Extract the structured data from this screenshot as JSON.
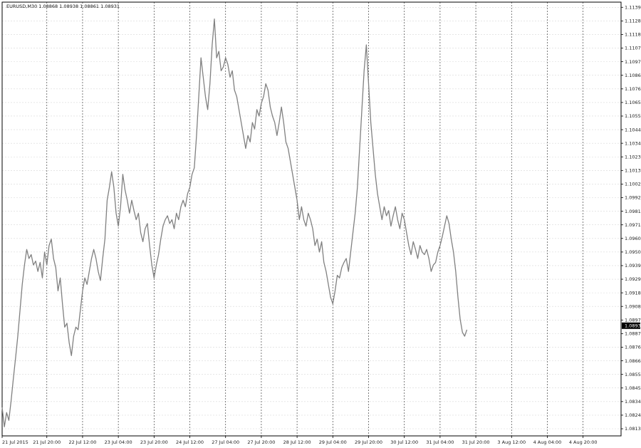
{
  "chart_data": {
    "type": "line",
    "title": "EURUSD,M30  1.08868 1.08938 1.08861 1.08931",
    "symbol": "EURUSD",
    "timeframe": "M30",
    "ohlc": {
      "open": "1.08868",
      "high": "1.08938",
      "low": "1.08861",
      "close": "1.08931"
    },
    "last_price_label": "1.08931",
    "last_price": 1.08931,
    "ylim": [
      1.0808,
      1.1143
    ],
    "y_ticks": [
      "1.11390",
      "1.11285",
      "1.11180",
      "1.11075",
      "1.10970",
      "1.10865",
      "1.10760",
      "1.10655",
      "1.10550",
      "1.10445",
      "1.10340",
      "1.10235",
      "1.10130",
      "1.10025",
      "1.09920",
      "1.09815",
      "1.09710",
      "1.09605",
      "1.09500",
      "1.09395",
      "1.09290",
      "1.09185",
      "1.09080",
      "1.08975",
      "1.08870",
      "1.08765",
      "1.08660",
      "1.08555",
      "1.08450",
      "1.08345",
      "1.08240",
      "1.08135"
    ],
    "x_ticks": [
      {
        "label": "21 Jul 2015",
        "t": 0
      },
      {
        "label": "21 Jul 20:00",
        "t": 40
      },
      {
        "label": "22 Jul 12:00",
        "t": 72
      },
      {
        "label": "23 Jul 04:00",
        "t": 104
      },
      {
        "label": "23 Jul 20:00",
        "t": 136
      },
      {
        "label": "24 Jul 12:00",
        "t": 168
      },
      {
        "label": "27 Jul 04:00",
        "t": 200
      },
      {
        "label": "27 Jul 20:00",
        "t": 232
      },
      {
        "label": "28 Jul 12:00",
        "t": 264
      },
      {
        "label": "29 Jul 04:00",
        "t": 296
      },
      {
        "label": "29 Jul 20:00",
        "t": 328
      },
      {
        "label": "30 Jul 12:00",
        "t": 360
      },
      {
        "label": "31 Jul 04:00",
        "t": 392
      },
      {
        "label": "31 Jul 20:00",
        "t": 424
      },
      {
        "label": "3 Aug 12:00",
        "t": 456
      },
      {
        "label": "4 Aug 04:00",
        "t": 488
      },
      {
        "label": "4 Aug 20:00",
        "t": 520
      }
    ],
    "t_range": [
      0,
      554
    ],
    "grid": true,
    "series": [
      {
        "color": "#808080",
        "points": [
          [
            0,
            1.083
          ],
          [
            2,
            1.0815
          ],
          [
            4,
            1.0826
          ],
          [
            6,
            1.082
          ],
          [
            8,
            1.0835
          ],
          [
            10,
            1.0852
          ],
          [
            12,
            1.0868
          ],
          [
            14,
            1.0885
          ],
          [
            16,
            1.0905
          ],
          [
            18,
            1.0925
          ],
          [
            20,
            1.094
          ],
          [
            22,
            1.0952
          ],
          [
            24,
            1.0945
          ],
          [
            26,
            1.0948
          ],
          [
            28,
            1.094
          ],
          [
            30,
            1.0943
          ],
          [
            32,
            1.0935
          ],
          [
            34,
            1.0942
          ],
          [
            36,
            1.093
          ],
          [
            38,
            1.095
          ],
          [
            40,
            1.094
          ],
          [
            42,
            1.0955
          ],
          [
            44,
            1.096
          ],
          [
            46,
            1.0945
          ],
          [
            48,
            1.0938
          ],
          [
            50,
            1.092
          ],
          [
            52,
            1.093
          ],
          [
            54,
            1.091
          ],
          [
            56,
            1.0892
          ],
          [
            58,
            1.0895
          ],
          [
            60,
            1.088
          ],
          [
            62,
            1.087
          ],
          [
            64,
            1.0885
          ],
          [
            66,
            1.0892
          ],
          [
            68,
            1.089
          ],
          [
            70,
            1.0905
          ],
          [
            72,
            1.092
          ],
          [
            74,
            1.093
          ],
          [
            76,
            1.0925
          ],
          [
            78,
            1.0935
          ],
          [
            80,
            1.0945
          ],
          [
            82,
            1.0952
          ],
          [
            84,
            1.0945
          ],
          [
            86,
            1.0935
          ],
          [
            88,
            1.0928
          ],
          [
            90,
            1.0945
          ],
          [
            92,
            1.096
          ],
          [
            94,
            1.099
          ],
          [
            96,
            1.1
          ],
          [
            98,
            1.1012
          ],
          [
            100,
            1.1
          ],
          [
            102,
            1.098
          ],
          [
            104,
            1.097
          ],
          [
            106,
            1.0985
          ],
          [
            108,
            1.101
          ],
          [
            110,
            1.0998
          ],
          [
            112,
            1.099
          ],
          [
            114,
            1.098
          ],
          [
            116,
            1.099
          ],
          [
            118,
            1.0982
          ],
          [
            120,
            1.0975
          ],
          [
            122,
            1.098
          ],
          [
            124,
            1.0965
          ],
          [
            126,
            1.0958
          ],
          [
            128,
            1.0968
          ],
          [
            130,
            1.0972
          ],
          [
            132,
            1.0955
          ],
          [
            134,
            1.094
          ],
          [
            136,
            1.093
          ],
          [
            138,
            1.094
          ],
          [
            140,
            1.0948
          ],
          [
            142,
            1.096
          ],
          [
            144,
            1.097
          ],
          [
            146,
            1.0975
          ],
          [
            148,
            1.0978
          ],
          [
            150,
            1.0972
          ],
          [
            152,
            1.0975
          ],
          [
            154,
            1.0968
          ],
          [
            156,
            1.098
          ],
          [
            158,
            1.0975
          ],
          [
            160,
            1.0985
          ],
          [
            162,
            1.099
          ],
          [
            164,
            1.0985
          ],
          [
            166,
            1.0995
          ],
          [
            168,
            1.1
          ],
          [
            170,
            1.101
          ],
          [
            172,
            1.1015
          ],
          [
            174,
            1.104
          ],
          [
            176,
            1.107
          ],
          [
            178,
            1.11
          ],
          [
            180,
            1.1085
          ],
          [
            182,
            1.107
          ],
          [
            184,
            1.106
          ],
          [
            186,
            1.108
          ],
          [
            188,
            1.111
          ],
          [
            190,
            1.113
          ],
          [
            192,
            1.11
          ],
          [
            194,
            1.1105
          ],
          [
            196,
            1.109
          ],
          [
            198,
            1.1093
          ],
          [
            200,
            1.11
          ],
          [
            202,
            1.1095
          ],
          [
            204,
            1.1085
          ],
          [
            206,
            1.109
          ],
          [
            208,
            1.1075
          ],
          [
            210,
            1.107
          ],
          [
            212,
            1.106
          ],
          [
            214,
            1.105
          ],
          [
            216,
            1.104
          ],
          [
            218,
            1.103
          ],
          [
            220,
            1.104
          ],
          [
            222,
            1.1035
          ],
          [
            224,
            1.105
          ],
          [
            226,
            1.1045
          ],
          [
            228,
            1.106
          ],
          [
            230,
            1.1055
          ],
          [
            232,
            1.1065
          ],
          [
            234,
            1.107
          ],
          [
            236,
            1.108
          ],
          [
            238,
            1.1075
          ],
          [
            240,
            1.1062
          ],
          [
            242,
            1.1055
          ],
          [
            244,
            1.105
          ],
          [
            246,
            1.104
          ],
          [
            248,
            1.105
          ],
          [
            250,
            1.1062
          ],
          [
            252,
            1.105
          ],
          [
            254,
            1.1035
          ],
          [
            256,
            1.103
          ],
          [
            258,
            1.102
          ],
          [
            260,
            1.101
          ],
          [
            262,
            1.1
          ],
          [
            264,
            1.099
          ],
          [
            266,
            1.0975
          ],
          [
            268,
            1.0985
          ],
          [
            270,
            1.0975
          ],
          [
            272,
            1.097
          ],
          [
            274,
            1.098
          ],
          [
            276,
            1.0975
          ],
          [
            278,
            1.0968
          ],
          [
            280,
            1.0955
          ],
          [
            282,
            1.096
          ],
          [
            284,
            1.095
          ],
          [
            286,
            1.0958
          ],
          [
            288,
            1.0942
          ],
          [
            290,
            1.0935
          ],
          [
            292,
            1.0925
          ],
          [
            294,
            1.0915
          ],
          [
            296,
            1.091
          ],
          [
            298,
            1.092
          ],
          [
            300,
            1.0932
          ],
          [
            302,
            1.093
          ],
          [
            304,
            1.0938
          ],
          [
            306,
            1.0942
          ],
          [
            308,
            1.0945
          ],
          [
            310,
            1.0935
          ],
          [
            312,
            1.095
          ],
          [
            314,
            1.0965
          ],
          [
            316,
            1.098
          ],
          [
            318,
            1.1
          ],
          [
            320,
            1.103
          ],
          [
            322,
            1.106
          ],
          [
            324,
            1.109
          ],
          [
            326,
            1.111
          ],
          [
            328,
            1.108
          ],
          [
            330,
            1.105
          ],
          [
            332,
            1.103
          ],
          [
            334,
            1.101
          ],
          [
            336,
            1.0995
          ],
          [
            338,
            1.0985
          ],
          [
            340,
            1.0975
          ],
          [
            342,
            1.0985
          ],
          [
            344,
            1.0978
          ],
          [
            346,
            1.0982
          ],
          [
            348,
            1.097
          ],
          [
            350,
            1.0978
          ],
          [
            352,
            1.0985
          ],
          [
            354,
            1.0975
          ],
          [
            356,
            1.0968
          ],
          [
            358,
            1.098
          ],
          [
            360,
            1.0975
          ],
          [
            362,
            1.0965
          ],
          [
            364,
            1.0955
          ],
          [
            366,
            1.0948
          ],
          [
            368,
            1.0958
          ],
          [
            370,
            1.0952
          ],
          [
            372,
            1.0945
          ],
          [
            374,
            1.0955
          ],
          [
            376,
            1.095
          ],
          [
            378,
            1.0948
          ],
          [
            380,
            1.0952
          ],
          [
            382,
            1.0945
          ],
          [
            384,
            1.0935
          ],
          [
            386,
            1.094
          ],
          [
            388,
            1.0942
          ],
          [
            390,
            1.095
          ],
          [
            392,
            1.0955
          ],
          [
            394,
            1.0962
          ],
          [
            396,
            1.097
          ],
          [
            398,
            1.0978
          ],
          [
            400,
            1.0972
          ],
          [
            402,
            1.096
          ],
          [
            404,
            1.095
          ],
          [
            406,
            1.0935
          ],
          [
            408,
            1.0915
          ],
          [
            410,
            1.0898
          ],
          [
            412,
            1.0888
          ],
          [
            414,
            1.0885
          ],
          [
            416,
            1.089
          ]
        ]
      }
    ]
  }
}
